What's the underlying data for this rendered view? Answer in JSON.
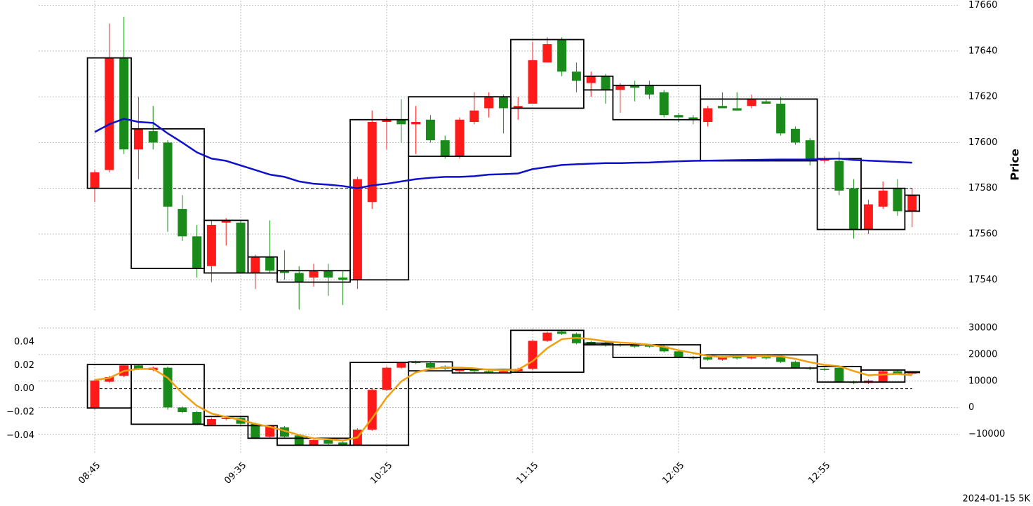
{
  "chart_data": [
    {
      "type": "candlestick",
      "ylabel": "Price",
      "ylim": [
        17526,
        17662
      ],
      "yticks": [
        17540,
        17560,
        17580,
        17600,
        17620,
        17640,
        17660
      ],
      "grid": true,
      "up_color": "#ff1a1a",
      "down_color": "#1a8a1a",
      "box_color": "#000000",
      "hline": 17580,
      "open": [
        17580,
        17588,
        17637,
        17597,
        17605,
        17600,
        17571,
        17559,
        17546,
        17565,
        17565,
        17543,
        17550,
        17544,
        17543,
        17541,
        17544,
        17541,
        17540,
        17574,
        17609,
        17610,
        17608,
        17610,
        17601,
        17594,
        17609,
        17615,
        17620,
        17615,
        17617,
        17635,
        17645,
        17631,
        17626,
        17629,
        17623,
        17625,
        17625,
        17622,
        17612,
        17611,
        17609,
        17616,
        17615,
        17616,
        17618,
        17617,
        17606,
        17601,
        17592,
        17592,
        17580,
        17562,
        17572,
        17580,
        17570
      ],
      "high": [
        17588,
        17652,
        17655,
        17620,
        17616,
        17601,
        17577,
        17564,
        17566,
        17567,
        17566,
        17551,
        17566,
        17553,
        17546,
        17547,
        17547,
        17544,
        17585,
        17614,
        17611,
        17619,
        17616,
        17612,
        17603,
        17611,
        17622,
        17622,
        17621,
        17620,
        17644,
        17646,
        17646,
        17635,
        17631,
        17630,
        17626,
        17627,
        17627,
        17623,
        17613,
        17612,
        17616,
        17622,
        17622,
        17621,
        17619,
        17620,
        17607,
        17602,
        17594,
        17596,
        17584,
        17575,
        17583,
        17584,
        17580
      ],
      "low": [
        17574,
        17587,
        17595,
        17584,
        17597,
        17561,
        17557,
        17541,
        17539,
        17555,
        17543,
        17536,
        17543,
        17540,
        17527,
        17537,
        17533,
        17529,
        17536,
        17571,
        17597,
        17600,
        17595,
        17600,
        17593,
        17593,
        17608,
        17611,
        17604,
        17610,
        17617,
        17635,
        17629,
        17622,
        17620,
        17617,
        17613,
        17618,
        17619,
        17611,
        17609,
        17608,
        17607,
        17615,
        17614,
        17615,
        17617,
        17603,
        17599,
        17590,
        17591,
        17577,
        17558,
        17560,
        17571,
        17568,
        17563
      ],
      "close": [
        17587,
        17637,
        17597,
        17606,
        17600,
        17572,
        17559,
        17545,
        17564,
        17566,
        17543,
        17550,
        17544,
        17543,
        17539,
        17544,
        17541,
        17540,
        17584,
        17609,
        17610,
        17608,
        17609,
        17601,
        17594,
        17610,
        17614,
        17620,
        17615,
        17616,
        17636,
        17643,
        17631,
        17627,
        17629,
        17623,
        17625,
        17624,
        17621,
        17612,
        17611,
        17610,
        17615,
        17615,
        17614,
        17619,
        17617,
        17604,
        17600,
        17592,
        17593,
        17579,
        17562,
        17573,
        17579,
        17570,
        17577
      ],
      "boxes": [
        {
          "start": 0,
          "end": 2,
          "low": 17580,
          "high": 17637
        },
        {
          "start": 3,
          "end": 7,
          "low": 17545,
          "high": 17606
        },
        {
          "start": 8,
          "end": 10,
          "low": 17543,
          "high": 17566
        },
        {
          "start": 11,
          "end": 12,
          "low": 17543,
          "high": 17550
        },
        {
          "start": 13,
          "end": 17,
          "low": 17539,
          "high": 17544
        },
        {
          "start": 18,
          "end": 21,
          "low": 17540,
          "high": 17610
        },
        {
          "start": 22,
          "end": 28,
          "low": 17594,
          "high": 17620
        },
        {
          "start": 29,
          "end": 33,
          "low": 17615,
          "high": 17645
        },
        {
          "start": 34,
          "end": 35,
          "low": 17623,
          "high": 17629
        },
        {
          "start": 36,
          "end": 41,
          "low": 17610,
          "high": 17625
        },
        {
          "start": 42,
          "end": 49,
          "low": 17592,
          "high": 17619
        },
        {
          "start": 50,
          "end": 52,
          "low": 17562,
          "high": 17593
        },
        {
          "start": 53,
          "end": 55,
          "low": 17562,
          "high": 17580
        },
        {
          "start": 56,
          "end": 56,
          "low": 17570,
          "high": 17577
        }
      ],
      "series": [
        {
          "color": "#1010c8",
          "values": [
            17604.6,
            17608,
            17610.4,
            17609,
            17608.6,
            17604,
            17600,
            17595.7,
            17593,
            17592,
            17590,
            17588,
            17586,
            17585,
            17583,
            17582,
            17581.6,
            17581,
            17580,
            17581.3,
            17582,
            17583,
            17584,
            17584.6,
            17585,
            17585,
            17585.3,
            17586,
            17586.2,
            17586.5,
            17588.4,
            17589.3,
            17590.2,
            17590.5,
            17590.8,
            17591,
            17591,
            17591.2,
            17591.3,
            17591.6,
            17591.8,
            17592,
            17592.1,
            17592.2,
            17592.3,
            17592.4,
            17592.5,
            17592.6,
            17592.6,
            17592.6,
            17592.8,
            17593,
            17592.4,
            17592.1,
            17591.8,
            17591.5,
            17591.2
          ]
        }
      ]
    },
    {
      "type": "candlestick",
      "categories": [
        "08:45",
        null,
        null,
        null,
        null,
        null,
        null,
        null,
        null,
        null,
        "09:35",
        null,
        null,
        null,
        null,
        null,
        null,
        null,
        null,
        null,
        "10:25",
        null,
        null,
        null,
        null,
        null,
        null,
        null,
        null,
        null,
        "11:15",
        null,
        null,
        null,
        null,
        null,
        null,
        null,
        null,
        null,
        "12:05",
        null,
        null,
        null,
        null,
        null,
        null,
        null,
        null,
        null,
        "12:55",
        null,
        null,
        null,
        null,
        null,
        null
      ],
      "ylim": [
        -0.056,
        0.052
      ],
      "yticks": [
        {
          "value": -0.04,
          "label": "−0.04"
        },
        {
          "value": -0.02,
          "label": "−0.02"
        },
        {
          "value": 0,
          "label": "0.00"
        },
        0.02,
        0.04
      ],
      "y2lim": [
        -17500,
        30000
      ],
      "y2ticks": [
        {
          "value": -10000,
          "label": "−10000"
        },
        0,
        10000,
        20000,
        30000
      ],
      "grid": true,
      "up_color": "#ff1a1a",
      "down_color": "#1a8a1a",
      "box_color": "#000000",
      "hline": 0,
      "open": [
        -0.016,
        0.006,
        0.011,
        0.02,
        0.016,
        0.018,
        -0.016,
        -0.02,
        -0.031,
        -0.026,
        -0.025,
        -0.03,
        -0.041,
        -0.033,
        -0.04,
        -0.048,
        -0.044,
        -0.046,
        -0.048,
        -0.035,
        -0.001,
        0.018,
        0.023,
        0.022,
        0.019,
        0.015,
        0.016,
        0.015,
        0.014,
        0.015,
        0.017,
        0.041,
        0.049,
        0.047,
        0.04,
        0.039,
        0.038,
        0.037,
        0.037,
        0.036,
        0.032,
        0.027,
        0.027,
        0.025,
        0.027,
        0.026,
        0.027,
        0.027,
        0.023,
        0.018,
        0.017,
        0.018,
        0.006,
        0.005,
        0.006,
        0.015,
        0.013
      ],
      "high": [
        0.008,
        0.011,
        0.021,
        0.021,
        0.019,
        0.019,
        -0.015,
        -0.019,
        -0.025,
        -0.024,
        -0.024,
        -0.029,
        -0.031,
        -0.032,
        -0.039,
        -0.043,
        -0.043,
        -0.045,
        -0.034,
        0.0,
        0.019,
        0.023,
        0.024,
        0.023,
        0.02,
        0.017,
        0.017,
        0.016,
        0.016,
        0.018,
        0.042,
        0.049,
        0.05,
        0.048,
        0.041,
        0.04,
        0.039,
        0.038,
        0.038,
        0.037,
        0.033,
        0.028,
        0.028,
        0.028,
        0.028,
        0.028,
        0.028,
        0.028,
        0.024,
        0.019,
        0.018,
        0.019,
        0.007,
        0.008,
        0.016,
        0.016,
        0.015
      ],
      "low": [
        -0.018,
        0.005,
        0.01,
        0.016,
        0.015,
        -0.018,
        -0.021,
        -0.031,
        -0.032,
        -0.027,
        -0.031,
        -0.043,
        -0.042,
        -0.042,
        -0.049,
        -0.049,
        -0.048,
        -0.049,
        -0.049,
        -0.036,
        -0.002,
        0.017,
        0.021,
        0.017,
        0.016,
        0.014,
        0.014,
        0.013,
        0.013,
        0.014,
        0.016,
        0.04,
        0.046,
        0.038,
        0.037,
        0.036,
        0.036,
        0.035,
        0.035,
        0.031,
        0.026,
        0.025,
        0.024,
        0.024,
        0.025,
        0.025,
        0.025,
        0.022,
        0.017,
        0.016,
        0.015,
        0.005,
        0.004,
        0.004,
        0.005,
        0.012,
        0.012
      ],
      "close": [
        0.007,
        0.01,
        0.02,
        0.017,
        0.018,
        -0.016,
        -0.02,
        -0.03,
        -0.026,
        -0.025,
        -0.03,
        -0.042,
        -0.032,
        -0.041,
        -0.048,
        -0.044,
        -0.047,
        -0.048,
        -0.035,
        -0.001,
        0.018,
        0.022,
        0.022,
        0.018,
        0.017,
        0.016,
        0.015,
        0.014,
        0.015,
        0.017,
        0.041,
        0.048,
        0.047,
        0.039,
        0.038,
        0.037,
        0.037,
        0.036,
        0.036,
        0.032,
        0.027,
        0.026,
        0.025,
        0.027,
        0.026,
        0.027,
        0.026,
        0.023,
        0.018,
        0.017,
        0.016,
        0.006,
        0.005,
        0.007,
        0.015,
        0.013,
        0.014
      ],
      "boxes": [
        {
          "start": 0,
          "end": 2,
          "low": -0.0165,
          "high": 0.0207
        },
        {
          "start": 3,
          "end": 7,
          "low": -0.0304,
          "high": 0.0207
        },
        {
          "start": 8,
          "end": 10,
          "low": -0.0316,
          "high": -0.0238
        },
        {
          "start": 11,
          "end": 12,
          "low": -0.0424,
          "high": -0.0316
        },
        {
          "start": 13,
          "end": 17,
          "low": -0.0484,
          "high": -0.0424
        },
        {
          "start": 18,
          "end": 21,
          "low": -0.0484,
          "high": 0.0225
        },
        {
          "start": 22,
          "end": 24,
          "low": 0.0153,
          "high": 0.023
        },
        {
          "start": 25,
          "end": 28,
          "low": 0.0135,
          "high": 0.0165
        },
        {
          "start": 29,
          "end": 33,
          "low": 0.0141,
          "high": 0.05
        },
        {
          "start": 34,
          "end": 35,
          "low": 0.0376,
          "high": 0.039
        },
        {
          "start": 36,
          "end": 41,
          "low": 0.0268,
          "high": 0.0376
        },
        {
          "start": 42,
          "end": 49,
          "low": 0.0177,
          "high": 0.029
        },
        {
          "start": 50,
          "end": 52,
          "low": 0.0057,
          "high": 0.019
        },
        {
          "start": 53,
          "end": 55,
          "low": 0.0057,
          "high": 0.016
        },
        {
          "start": 56,
          "end": 56,
          "low": 0.014,
          "high": 0.0145
        }
      ],
      "series": [
        {
          "color": "#f0a010",
          "axis": "y2",
          "values": [
            10400,
            11200,
            13800,
            14600,
            14600,
            11200,
            5400,
            700,
            -2200,
            -3500,
            -4600,
            -6100,
            -7200,
            -8700,
            -10300,
            -11600,
            -11900,
            -12400,
            -11200,
            -4000,
            3800,
            9900,
            13300,
            14600,
            15100,
            15100,
            14800,
            14300,
            14100,
            14300,
            17500,
            22400,
            25800,
            26300,
            25800,
            25000,
            24500,
            24200,
            23700,
            22900,
            21600,
            20600,
            19500,
            19000,
            19300,
            19500,
            19500,
            19300,
            18400,
            17100,
            16100,
            15600,
            13800,
            12200,
            12500,
            12700,
            12200
          ]
        }
      ],
      "annotation": "2024-01-15 5K"
    }
  ]
}
